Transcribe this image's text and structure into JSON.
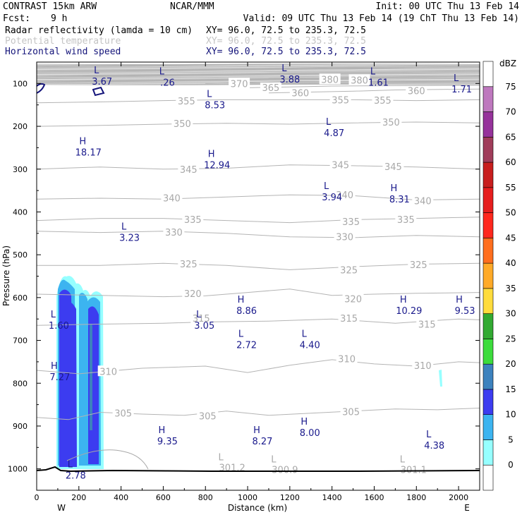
{
  "header": {
    "model": "CONTRAST 15km ARW",
    "org": "NCAR/MMM",
    "init": "Init: 00 UTC Thu 13 Feb 14",
    "fcst_label": "Fcst:",
    "fcst_value": "9 h",
    "valid": "Valid: 09 UTC Thu 13 Feb 14 (19 ChT Thu 13 Feb 14)"
  },
  "fields": [
    {
      "name": "Radar reflectivity (lamda = 10 cm)",
      "xy": "XY=  96.0, 72.5 to 235.3, 72.5",
      "color": "#000000"
    },
    {
      "name": "Potential temperature",
      "xy": "XY=  96.0, 72.5 to 235.3, 72.5",
      "color": "#b4b4b4"
    },
    {
      "name": "Horizontal wind speed",
      "xy": "XY=  96.0, 72.5 to 235.3, 72.5",
      "color": "#14147a"
    }
  ],
  "chart_data": {
    "type": "vertical-cross-section",
    "xlabel": "Distance (km)",
    "ylabel": "Pressure (hPa)",
    "xlim": [
      0,
      2100
    ],
    "ylim": [
      1050,
      50
    ],
    "x_ticks": [
      "0",
      "200",
      "400",
      "600",
      "800",
      "1000",
      "1200",
      "1400",
      "1600",
      "1800",
      "2000"
    ],
    "y_ticks": [
      "100",
      "200",
      "300",
      "400",
      "500",
      "600",
      "700",
      "800",
      "900",
      "1000"
    ],
    "endpoints": {
      "left": "W",
      "right": "E"
    },
    "colorbar": {
      "unit": "dBZ",
      "levels": [
        "0",
        "5",
        "10",
        "15",
        "20",
        "25",
        "30",
        "35",
        "40",
        "45",
        "50",
        "55",
        "60",
        "65",
        "70",
        "75"
      ],
      "colors": [
        "#ffffff",
        "#96ffff",
        "#3cb4f0",
        "#3c3cf0",
        "#3c82be",
        "#3cdc3c",
        "#32aa32",
        "#ffdc3c",
        "#ffaa28",
        "#ff6e1e",
        "#ff281e",
        "#e61e1e",
        "#c81e1e",
        "#a03c5a",
        "#96329b",
        "#be78be"
      ]
    },
    "theta_contours": [
      {
        "value": "305",
        "points": [
          [
            0,
            880
          ],
          [
            150,
            885
          ],
          [
            300,
            868
          ],
          [
            500,
            872
          ],
          [
            700,
            875
          ],
          [
            900,
            865
          ],
          [
            1100,
            875
          ],
          [
            1300,
            870
          ],
          [
            1500,
            865
          ],
          [
            1700,
            860
          ],
          [
            1900,
            862
          ],
          [
            2100,
            858
          ]
        ],
        "labels": [
          [
            410,
            870
          ],
          [
            810,
            876
          ],
          [
            1490,
            866
          ]
        ]
      },
      {
        "value": "310",
        "points": [
          [
            0,
            770
          ],
          [
            200,
            778
          ],
          [
            500,
            765
          ],
          [
            800,
            760
          ],
          [
            1000,
            775
          ],
          [
            1200,
            758
          ],
          [
            1400,
            745
          ],
          [
            1600,
            755
          ],
          [
            1800,
            760
          ],
          [
            2000,
            750
          ],
          [
            2100,
            752
          ]
        ],
        "labels": [
          [
            340,
            772
          ],
          [
            1470,
            743
          ],
          [
            1830,
            758
          ]
        ]
      },
      {
        "value": "315",
        "points": [
          [
            0,
            665
          ],
          [
            300,
            662
          ],
          [
            600,
            660
          ],
          [
            800,
            657
          ],
          [
            1100,
            655
          ],
          [
            1400,
            650
          ],
          [
            1700,
            660
          ],
          [
            2000,
            650
          ],
          [
            2100,
            652
          ]
        ],
        "labels": [
          [
            780,
            648
          ],
          [
            1480,
            648
          ],
          [
            1850,
            662
          ]
        ]
      },
      {
        "value": "320",
        "points": [
          [
            0,
            592
          ],
          [
            300,
            595
          ],
          [
            600,
            598
          ],
          [
            800,
            596
          ],
          [
            1000,
            588
          ],
          [
            1200,
            580
          ],
          [
            1400,
            595
          ],
          [
            1600,
            592
          ],
          [
            1800,
            590
          ],
          [
            2100,
            588
          ]
        ],
        "labels": [
          [
            740,
            590
          ],
          [
            1500,
            603
          ]
        ]
      },
      {
        "value": "325",
        "points": [
          [
            0,
            525
          ],
          [
            300,
            525
          ],
          [
            600,
            520
          ],
          [
            900,
            525
          ],
          [
            1200,
            535
          ],
          [
            1500,
            528
          ],
          [
            1800,
            522
          ],
          [
            2100,
            520
          ]
        ],
        "labels": [
          [
            720,
            521
          ],
          [
            1480,
            535
          ],
          [
            1810,
            523
          ]
        ]
      },
      {
        "value": "330",
        "points": [
          [
            0,
            445
          ],
          [
            300,
            448
          ],
          [
            600,
            445
          ],
          [
            900,
            450
          ],
          [
            1200,
            458
          ],
          [
            1500,
            460
          ],
          [
            1800,
            455
          ],
          [
            2100,
            458
          ]
        ],
        "labels": [
          [
            650,
            447
          ],
          [
            1460,
            458
          ]
        ]
      },
      {
        "value": "335",
        "points": [
          [
            0,
            420
          ],
          [
            300,
            415
          ],
          [
            600,
            415
          ],
          [
            900,
            420
          ],
          [
            1200,
            425
          ],
          [
            1500,
            418
          ],
          [
            1800,
            415
          ],
          [
            2100,
            412
          ]
        ],
        "labels": [
          [
            740,
            417
          ],
          [
            1490,
            422
          ],
          [
            1750,
            417
          ]
        ]
      },
      {
        "value": "340",
        "points": [
          [
            0,
            370
          ],
          [
            300,
            368
          ],
          [
            600,
            370
          ],
          [
            900,
            365
          ],
          [
            1200,
            360
          ],
          [
            1500,
            362
          ],
          [
            1800,
            372
          ],
          [
            2100,
            370
          ]
        ],
        "labels": [
          [
            640,
            367
          ],
          [
            1460,
            360
          ],
          [
            1830,
            374
          ]
        ]
      },
      {
        "value": "345",
        "points": [
          [
            0,
            300
          ],
          [
            300,
            295
          ],
          [
            600,
            300
          ],
          [
            900,
            298
          ],
          [
            1200,
            290
          ],
          [
            1500,
            292
          ],
          [
            1800,
            295
          ],
          [
            2100,
            300
          ]
        ],
        "labels": [
          [
            720,
            300
          ],
          [
            1440,
            290
          ],
          [
            1690,
            294
          ]
        ]
      },
      {
        "value": "350",
        "points": [
          [
            0,
            200
          ],
          [
            300,
            198
          ],
          [
            600,
            195
          ],
          [
            900,
            193
          ],
          [
            1200,
            195
          ],
          [
            1500,
            192
          ],
          [
            1800,
            190
          ],
          [
            2100,
            192
          ]
        ],
        "labels": [
          [
            690,
            193
          ],
          [
            1680,
            190
          ]
        ]
      },
      {
        "value": "355",
        "points": [
          [
            0,
            145
          ],
          [
            300,
            143
          ],
          [
            600,
            140
          ],
          [
            900,
            138
          ],
          [
            1200,
            138
          ],
          [
            1500,
            138
          ],
          [
            1800,
            140
          ],
          [
            2100,
            138
          ]
        ],
        "labels": [
          [
            710,
            141
          ],
          [
            1440,
            138
          ],
          [
            1640,
            139
          ]
        ]
      },
      {
        "value": "360",
        "points": [
          [
            1100,
            122
          ],
          [
            1300,
            120
          ],
          [
            1500,
            118
          ],
          [
            1700,
            115
          ],
          [
            2100,
            113
          ]
        ],
        "labels": [
          [
            1250,
            122
          ],
          [
            1800,
            117
          ]
        ]
      },
      {
        "value": "365",
        "points": [
          [
            1000,
            110
          ],
          [
            1200,
            108
          ],
          [
            1400,
            106
          ],
          [
            2100,
            104
          ]
        ],
        "labels": [
          [
            1110,
            109
          ]
        ]
      },
      {
        "value": "370",
        "points": [
          [
            800,
            100
          ],
          [
            1000,
            98
          ],
          [
            1200,
            96
          ],
          [
            2100,
            94
          ]
        ],
        "labels": [
          [
            960,
            100
          ]
        ]
      },
      {
        "value": "380",
        "points": [
          [
            1100,
            88
          ],
          [
            1400,
            86
          ],
          [
            1800,
            84
          ],
          [
            2100,
            84
          ]
        ],
        "labels": [
          [
            1390,
            90
          ],
          [
            1530,
            92
          ]
        ]
      }
    ],
    "wind_extrema": [
      {
        "kind": "L",
        "value": "3.67",
        "x": 310,
        "p": 70
      },
      {
        "kind": "L",
        "value": ".26",
        "x": 620,
        "p": 72
      },
      {
        "kind": "L",
        "value": "3.88",
        "x": 1200,
        "p": 65
      },
      {
        "kind": "L",
        "value": "1.61",
        "x": 1620,
        "p": 72
      },
      {
        "kind": "L",
        "value": "1.71",
        "x": 2015,
        "p": 88
      },
      {
        "kind": "L",
        "value": "8.53",
        "x": 845,
        "p": 125
      },
      {
        "kind": "L",
        "value": "4.87",
        "x": 1410,
        "p": 190
      },
      {
        "kind": "H",
        "value": "18.17",
        "x": 245,
        "p": 235
      },
      {
        "kind": "H",
        "value": "12.94",
        "x": 855,
        "p": 265
      },
      {
        "kind": "L",
        "value": "3.94",
        "x": 1400,
        "p": 340
      },
      {
        "kind": "H",
        "value": "8.31",
        "x": 1720,
        "p": 345
      },
      {
        "kind": "L",
        "value": "3.23",
        "x": 440,
        "p": 435
      },
      {
        "kind": "H",
        "value": "8.86",
        "x": 995,
        "p": 605
      },
      {
        "kind": "H",
        "value": "10.29",
        "x": 1765,
        "p": 605
      },
      {
        "kind": "H",
        "value": "9.53",
        "x": 2030,
        "p": 605
      },
      {
        "kind": "L",
        "value": "1.60",
        "x": 105,
        "p": 640
      },
      {
        "kind": "L",
        "value": "3.05",
        "x": 795,
        "p": 640
      },
      {
        "kind": "L",
        "value": "2.72",
        "x": 995,
        "p": 685
      },
      {
        "kind": "L",
        "value": "4.40",
        "x": 1295,
        "p": 685
      },
      {
        "kind": "H",
        "value": "7.27",
        "x": 110,
        "p": 760
      },
      {
        "kind": "H",
        "value": "8.00",
        "x": 1295,
        "p": 890
      },
      {
        "kind": "H",
        "value": "9.35",
        "x": 620,
        "p": 910
      },
      {
        "kind": "H",
        "value": "8.27",
        "x": 1070,
        "p": 910
      },
      {
        "kind": "L",
        "value": "4.38",
        "x": 1885,
        "p": 920
      },
      {
        "kind": "L",
        "value": "2.78",
        "x": 185,
        "p": 990
      }
    ],
    "theta_extrema": [
      {
        "kind": "L",
        "value": "301.2",
        "x": 900,
        "p": 1000
      },
      {
        "kind": "L",
        "value": "300.9",
        "x": 1150,
        "p": 1005
      },
      {
        "kind": "L",
        "value": "301.1",
        "x": 1760,
        "p": 1005
      }
    ]
  }
}
